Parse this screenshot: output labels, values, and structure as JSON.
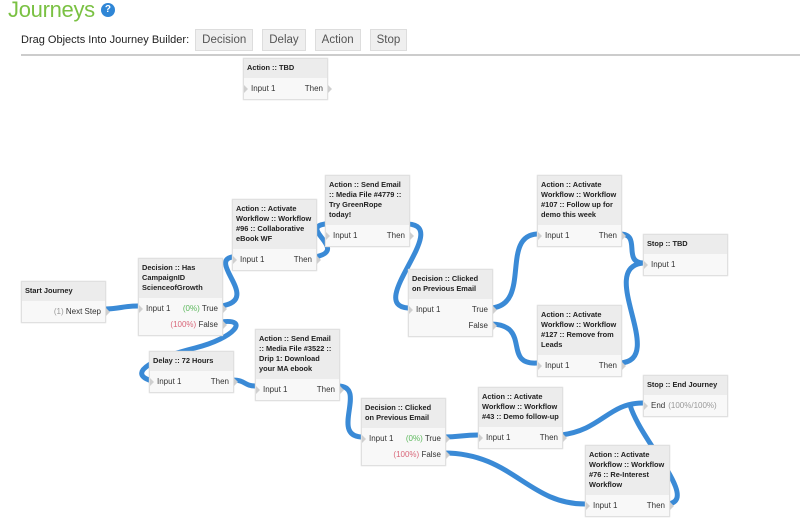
{
  "header": {
    "title": "Journeys",
    "help_icon": "question-circle-icon"
  },
  "toolbar": {
    "label": "Drag Objects Into Journey Builder:",
    "buttons": [
      "Decision",
      "Delay",
      "Action",
      "Stop"
    ]
  },
  "colors": {
    "title": "#7ac143",
    "connector": "#3a8ad6",
    "true_pct": "#5cb85c",
    "false_pct": "#d9677a"
  },
  "nodes": [
    {
      "id": "action-tbd",
      "title": "Action :: TBD",
      "rows": [
        {
          "left": "Input 1",
          "right": "Then"
        }
      ]
    },
    {
      "id": "start-journey",
      "title": "Start Journey",
      "rows": [
        {
          "pct": "(1)",
          "right": "Next Step"
        }
      ]
    },
    {
      "id": "decision-campaign",
      "title": "Decision :: Has CampaignID ScienceofGrowth",
      "rows": [
        {
          "left": "Input 1",
          "pct": "(0%)",
          "right": "True"
        },
        {
          "pct": "(100%)",
          "right": "False"
        }
      ]
    },
    {
      "id": "action-96",
      "title": "Action :: Activate Workflow :: Workflow #96 :: Collaborative eBook WF",
      "rows": [
        {
          "left": "Input 1",
          "right": "Then"
        }
      ]
    },
    {
      "id": "email-4779",
      "title": "Action :: Send Email :: Media File #4779 :: Try GreenRope today!",
      "rows": [
        {
          "left": "Input 1",
          "right": "Then"
        }
      ]
    },
    {
      "id": "decision-clicked-1",
      "title": "Decision :: Clicked on Previous Email",
      "rows": [
        {
          "left": "Input 1",
          "right": "True"
        },
        {
          "right": "False"
        }
      ]
    },
    {
      "id": "action-107",
      "title": "Action :: Activate Workflow :: Workflow #107 :: Follow up for demo this week",
      "rows": [
        {
          "left": "Input 1",
          "right": "Then"
        }
      ]
    },
    {
      "id": "stop-tbd",
      "title": "Stop :: TBD",
      "rows": [
        {
          "left": "Input 1"
        }
      ]
    },
    {
      "id": "action-127",
      "title": "Action :: Activate Workflow :: Workflow #127 :: Remove from Leads",
      "rows": [
        {
          "left": "Input 1",
          "right": "Then"
        }
      ]
    },
    {
      "id": "delay-72",
      "title": "Delay :: 72 Hours",
      "rows": [
        {
          "left": "Input 1",
          "right": "Then"
        }
      ]
    },
    {
      "id": "email-3522",
      "title": "Action :: Send Email :: Media File #3522 :: Drip 1: Download your MA ebook",
      "rows": [
        {
          "left": "Input 1",
          "right": "Then"
        }
      ]
    },
    {
      "id": "decision-clicked-2",
      "title": "Decision :: Clicked on Previous Email",
      "rows": [
        {
          "left": "Input 1",
          "pct": "(0%)",
          "right": "True"
        },
        {
          "pct": "(100%)",
          "right": "False"
        }
      ]
    },
    {
      "id": "action-43",
      "title": "Action :: Activate Workflow :: Workflow #43 :: Demo follow-up",
      "rows": [
        {
          "left": "Input 1",
          "right": "Then"
        }
      ]
    },
    {
      "id": "stop-end",
      "title": "Stop :: End Journey",
      "rows": [
        {
          "left": "End",
          "pct": "(100%/100%)"
        }
      ]
    },
    {
      "id": "action-76",
      "title": "Action :: Activate Workflow :: Workflow #76 :: Re-Interest Workflow",
      "rows": [
        {
          "left": "Input 1",
          "right": "Then"
        }
      ]
    }
  ]
}
